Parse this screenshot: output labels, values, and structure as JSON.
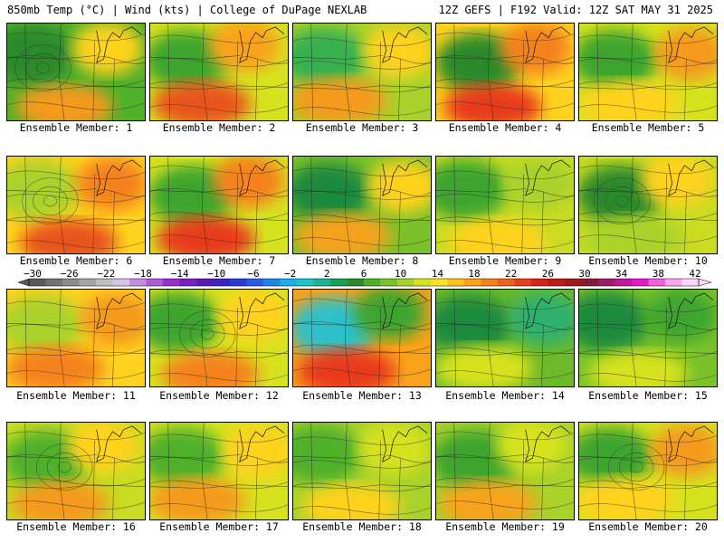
{
  "header": {
    "left": "850mb Temp (°C) | Wind (kts) | College of DuPage NEXLAB",
    "right": "12Z GEFS | F192 Valid: 12Z SAT MAY 31 2025"
  },
  "members": [
    {
      "label": "Ensemble Member: 1",
      "base": "#4fb02a",
      "blobs": [
        {
          "c": "#2b8a2b"
        },
        {
          "c": "#ffd21f"
        },
        {
          "c": "#f59a1c"
        }
      ],
      "lows": true
    },
    {
      "label": "Ensemble Member: 2",
      "base": "#d7e21f",
      "blobs": [
        {
          "c": "#3ea52e"
        },
        {
          "c": "#f9a21a"
        },
        {
          "c": "#e8541a"
        }
      ]
    },
    {
      "label": "Ensemble Member: 3",
      "base": "#a9d22a",
      "blobs": [
        {
          "c": "#38b050"
        },
        {
          "c": "#ffd21f"
        },
        {
          "c": "#f59a1c"
        }
      ]
    },
    {
      "label": "Ensemble Member: 4",
      "base": "#ffd21f",
      "blobs": [
        {
          "c": "#2b8a2b"
        },
        {
          "c": "#f5821a"
        },
        {
          "c": "#e83a1a"
        }
      ]
    },
    {
      "label": "Ensemble Member: 5",
      "base": "#d7e21f",
      "blobs": [
        {
          "c": "#3ea52e"
        },
        {
          "c": "#f59a1c"
        },
        {
          "c": "#ffd21f"
        }
      ]
    },
    {
      "label": "Ensemble Member: 6",
      "base": "#ffd21f",
      "blobs": [
        {
          "c": "#a9d22a"
        },
        {
          "c": "#f5821a"
        },
        {
          "c": "#e8541a"
        }
      ],
      "lows": true
    },
    {
      "label": "Ensemble Member: 7",
      "base": "#d7e21f",
      "blobs": [
        {
          "c": "#3ea52e"
        },
        {
          "c": "#f5821a"
        },
        {
          "c": "#e83a1a"
        }
      ]
    },
    {
      "label": "Ensemble Member: 8",
      "base": "#7bc22a",
      "blobs": [
        {
          "c": "#1f8a3e"
        },
        {
          "c": "#ffd21f"
        },
        {
          "c": "#f5a21a"
        }
      ]
    },
    {
      "label": "Ensemble Member: 9",
      "base": "#c9dc22",
      "blobs": [
        {
          "c": "#3ea52e"
        },
        {
          "c": "#a9d22a"
        },
        {
          "c": "#ffd21f"
        }
      ]
    },
    {
      "label": "Ensemble Member: 10",
      "base": "#c9dc22",
      "blobs": [
        {
          "c": "#2b8a2b"
        },
        {
          "c": "#ffd21f"
        },
        {
          "c": "#a9d22a"
        }
      ],
      "lows": true
    },
    {
      "label": "Ensemble Member: 11",
      "base": "#ffd21f",
      "blobs": [
        {
          "c": "#a9d22a"
        },
        {
          "c": "#f59a1c"
        },
        {
          "c": "#f5821a"
        }
      ]
    },
    {
      "label": "Ensemble Member: 12",
      "base": "#d7e21f",
      "blobs": [
        {
          "c": "#3ea52e"
        },
        {
          "c": "#ffd21f"
        },
        {
          "c": "#f5821a"
        }
      ],
      "lows": true
    },
    {
      "label": "Ensemble Member: 13",
      "base": "#f9a21a",
      "blobs": [
        {
          "c": "#2fc0c8"
        },
        {
          "c": "#3ea52e"
        },
        {
          "c": "#e83a1a"
        }
      ]
    },
    {
      "label": "Ensemble Member: 14",
      "base": "#6cba2a",
      "blobs": [
        {
          "c": "#1f8a3e"
        },
        {
          "c": "#2fb06e"
        },
        {
          "c": "#d7e21f"
        }
      ]
    },
    {
      "label": "Ensemble Member: 15",
      "base": "#7bc22a",
      "blobs": [
        {
          "c": "#1f8a3e"
        },
        {
          "c": "#3ea52e"
        },
        {
          "c": "#d7e21f"
        }
      ]
    },
    {
      "label": "Ensemble Member: 16",
      "base": "#c9dc22",
      "blobs": [
        {
          "c": "#4fb02a"
        },
        {
          "c": "#ffd21f"
        },
        {
          "c": "#f59a1c"
        }
      ],
      "lows": true
    },
    {
      "label": "Ensemble Member: 17",
      "base": "#d7e21f",
      "blobs": [
        {
          "c": "#4fb02a"
        },
        {
          "c": "#ffd21f"
        },
        {
          "c": "#f59a1c"
        }
      ]
    },
    {
      "label": "Ensemble Member: 18",
      "base": "#a9d22a",
      "blobs": [
        {
          "c": "#4fb02a"
        },
        {
          "c": "#d7e21f"
        },
        {
          "c": "#ffd21f"
        }
      ]
    },
    {
      "label": "Ensemble Member: 19",
      "base": "#a9d22a",
      "blobs": [
        {
          "c": "#3ea52e"
        },
        {
          "c": "#d7e21f"
        },
        {
          "c": "#f9a21a"
        }
      ]
    },
    {
      "label": "Ensemble Member: 20",
      "base": "#d7e21f",
      "blobs": [
        {
          "c": "#3ea52e"
        },
        {
          "c": "#f59a1c"
        },
        {
          "c": "#ffd21f"
        }
      ],
      "lows": true
    }
  ],
  "colorbar": {
    "labels": [
      "−30",
      "−26",
      "−22",
      "−18",
      "−14",
      "−10",
      "−6",
      "−2",
      "2",
      "6",
      "10",
      "14",
      "18",
      "22",
      "26",
      "30",
      "34",
      "38",
      "42"
    ],
    "colors": [
      "#5a5a5a",
      "#737373",
      "#8c8c8c",
      "#a5a5a5",
      "#bebebe",
      "#d7c2e8",
      "#c38ee0",
      "#b05cd8",
      "#9a2ecc",
      "#7a1fc4",
      "#5a1ab8",
      "#3a22c4",
      "#2a3ad8",
      "#2a5ae8",
      "#1a86e8",
      "#1ab0e8",
      "#1ac8c8",
      "#1ab494",
      "#1aa05a",
      "#2b8a2b",
      "#4fb02a",
      "#7bc22a",
      "#a9d22a",
      "#d7e21f",
      "#ffe21f",
      "#ffc21a",
      "#f9a21a",
      "#f5821a",
      "#f0621a",
      "#e8401a",
      "#d8221a",
      "#c01a1a",
      "#a01818",
      "#8a1a3a",
      "#a01a6a",
      "#c01a9a",
      "#e01ac4",
      "#f060e0",
      "#f8a8f0",
      "#fcd8fa"
    ]
  }
}
